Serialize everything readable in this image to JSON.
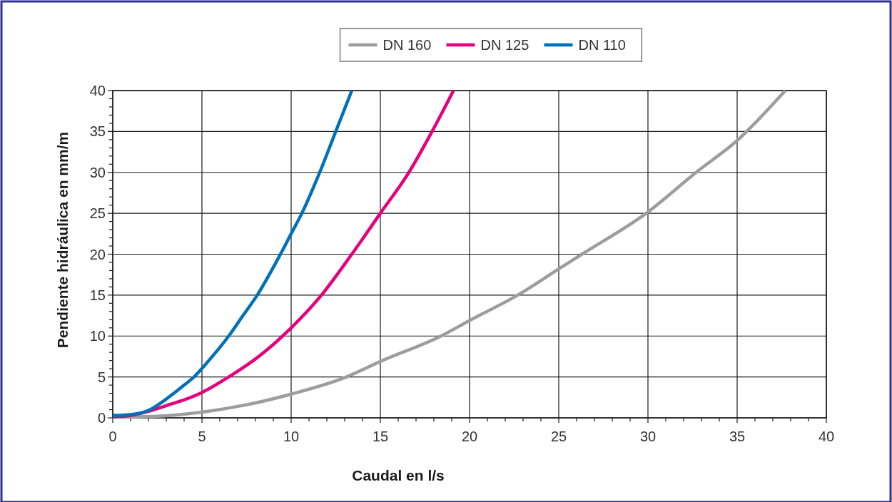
{
  "chart_data": {
    "type": "line",
    "xlabel": "Caudal en l/s",
    "ylabel": "Pendiente hidráulica en mm/m",
    "xlim": [
      0,
      40
    ],
    "ylim": [
      0,
      40
    ],
    "xticks": [
      0,
      {
        "value": 1,
        "label": null
      },
      {
        "value": 2,
        "label": null
      },
      {
        "value": 3,
        "label": null
      },
      {
        "value": 4,
        "label": null
      },
      5,
      {
        "value": 6,
        "label": null
      },
      {
        "value": 7,
        "label": null
      },
      {
        "value": 8,
        "label": null
      },
      {
        "value": 9,
        "label": null
      },
      10,
      {
        "value": 11,
        "label": null
      },
      {
        "value": 12,
        "label": null
      },
      {
        "value": 13,
        "label": null
      },
      {
        "value": 14,
        "label": null
      },
      15,
      {
        "value": 16,
        "label": null
      },
      {
        "value": 17,
        "label": null
      },
      {
        "value": 18,
        "label": null
      },
      {
        "value": 19,
        "label": null
      },
      20,
      {
        "value": 21,
        "label": null
      },
      {
        "value": 22,
        "label": null
      },
      {
        "value": 23,
        "label": null
      },
      {
        "value": 24,
        "label": null
      },
      25,
      {
        "value": 26,
        "label": null
      },
      {
        "value": 27,
        "label": null
      },
      {
        "value": 28,
        "label": null
      },
      {
        "value": 29,
        "label": null
      },
      30,
      {
        "value": 31,
        "label": null
      },
      {
        "value": 32,
        "label": null
      },
      {
        "value": 33,
        "label": null
      },
      {
        "value": 34,
        "label": null
      },
      35,
      {
        "value": 36,
        "label": null
      },
      {
        "value": 37,
        "label": null
      },
      {
        "value": 38,
        "label": null
      },
      {
        "value": 39,
        "label": null
      },
      40
    ],
    "yticks": [
      0,
      {
        "value": 1,
        "label": null
      },
      {
        "value": 2,
        "label": null
      },
      {
        "value": 3,
        "label": null
      },
      {
        "value": 4,
        "label": null
      },
      5,
      {
        "value": 6,
        "label": null
      },
      {
        "value": 7,
        "label": null
      },
      {
        "value": 8,
        "label": null
      },
      {
        "value": 9,
        "label": null
      },
      10,
      {
        "value": 11,
        "label": null
      },
      {
        "value": 12,
        "label": null
      },
      {
        "value": 13,
        "label": null
      },
      {
        "value": 14,
        "label": null
      },
      15,
      {
        "value": 16,
        "label": null
      },
      {
        "value": 17,
        "label": null
      },
      {
        "value": 18,
        "label": null
      },
      {
        "value": 19,
        "label": null
      },
      20,
      {
        "value": 21,
        "label": null
      },
      {
        "value": 22,
        "label": null
      },
      {
        "value": 23,
        "label": null
      },
      {
        "value": 24,
        "label": null
      },
      25,
      {
        "value": 26,
        "label": null
      },
      {
        "value": 27,
        "label": null
      },
      {
        "value": 28,
        "label": null
      },
      {
        "value": 29,
        "label": null
      },
      30,
      {
        "value": 31,
        "label": null
      },
      {
        "value": 32,
        "label": null
      },
      {
        "value": 33,
        "label": null
      },
      {
        "value": 34,
        "label": null
      },
      35,
      {
        "value": 36,
        "label": null
      },
      {
        "value": 37,
        "label": null
      },
      {
        "value": 38,
        "label": null
      },
      {
        "value": 39,
        "label": null
      },
      40
    ],
    "grid": true,
    "legend": "top",
    "marker": "none",
    "line_style": "solid",
    "series": [
      {
        "name": "DN 160",
        "color": "#9d9d9f",
        "x": [
          0,
          2.5,
          5,
          7.5,
          10,
          13.1,
          15,
          18.4,
          20,
          22.7,
          25,
          26.3,
          29.9,
          32.7,
          35,
          37.7
        ],
        "values": [
          0.1,
          0.2,
          0.7,
          1.6,
          2.9,
          5,
          6.9,
          10,
          11.9,
          15,
          18.2,
          20,
          25,
          30,
          33.9,
          40
        ]
      },
      {
        "name": "DN 125",
        "color": "#e6007e",
        "x": [
          0,
          1,
          2,
          3,
          4,
          5,
          6.5,
          8,
          10,
          11.7,
          13.4,
          15,
          16.6,
          17.9,
          19.1
        ],
        "values": [
          0.1,
          0.3,
          0.8,
          1.5,
          2.2,
          3.1,
          5,
          7.2,
          11,
          15,
          20,
          25,
          30,
          35,
          40
        ]
      },
      {
        "name": "DN 110",
        "color": "#0070b8",
        "x": [
          0,
          1,
          2,
          3,
          4,
          4.55,
          5.5,
          6.5,
          7.3,
          8.1,
          9.4,
          10,
          10.6,
          11.6,
          12.5,
          13.4
        ],
        "values": [
          0.3,
          0.4,
          0.9,
          2.3,
          4,
          5,
          7.3,
          10,
          12.5,
          15,
          20,
          22.5,
          25,
          30,
          35,
          40
        ]
      }
    ]
  }
}
